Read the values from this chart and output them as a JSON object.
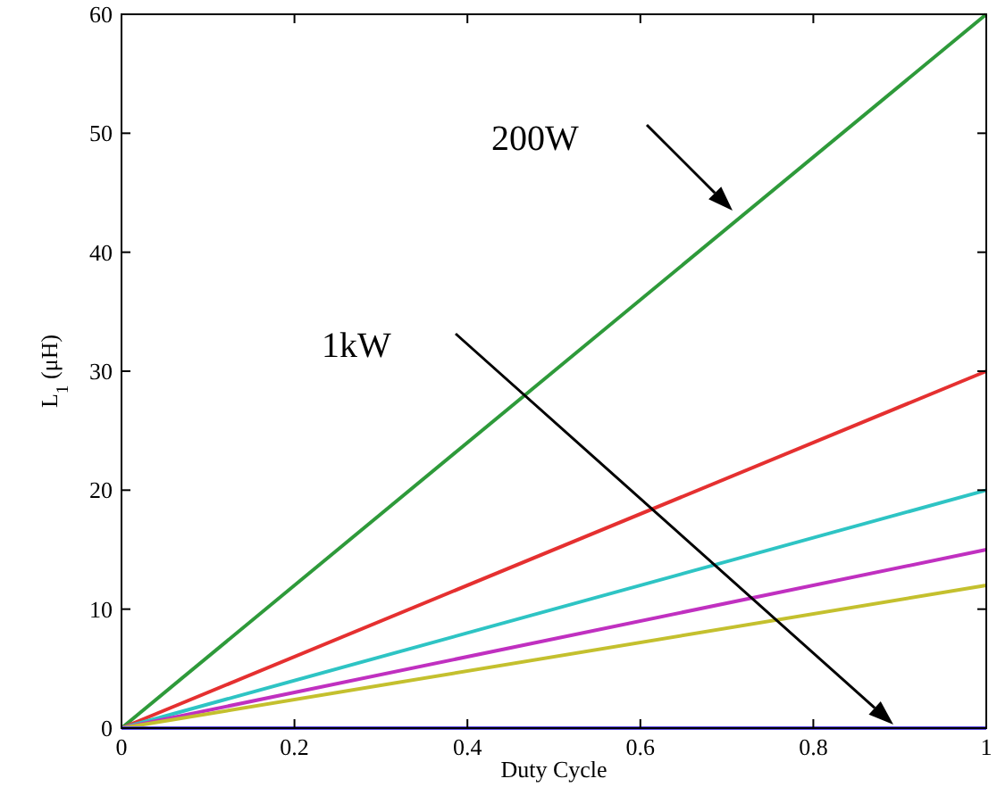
{
  "chart_data": {
    "type": "line",
    "xlabel": "Duty Cycle",
    "ylabel": "L$_{1}$ (μH)",
    "x": [
      0,
      1
    ],
    "series": [
      {
        "color": "#2e9a3a",
        "values": [
          0,
          60
        ]
      },
      {
        "color": "#e53030",
        "values": [
          0,
          30
        ]
      },
      {
        "color": "#2ec4c4",
        "values": [
          0,
          20
        ]
      },
      {
        "color": "#c030c0",
        "values": [
          0,
          15
        ]
      },
      {
        "color": "#c4c02e",
        "values": [
          0,
          12
        ]
      },
      {
        "color": "#5a4ae0",
        "values": [
          0,
          0
        ]
      }
    ],
    "xlim": [
      0,
      1
    ],
    "xticks": [
      0,
      0.2,
      0.4,
      0.6,
      0.8,
      1
    ],
    "ylim": [
      0,
      60
    ],
    "yticks": [
      0,
      10,
      20,
      30,
      40,
      50,
      60
    ],
    "annotations": [
      "200W",
      "1kW"
    ],
    "grid": false,
    "marker": "none",
    "line_style": "solid"
  }
}
